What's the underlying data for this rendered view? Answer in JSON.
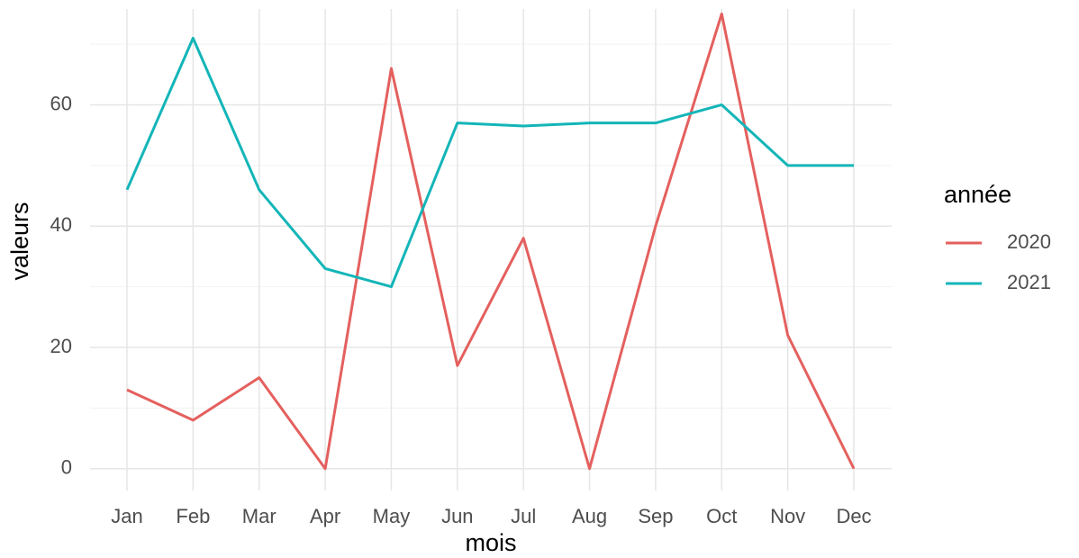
{
  "chart_data": {
    "type": "line",
    "x_label": "mois",
    "y_label": "valeurs",
    "legend_title": "année",
    "legend_position": "right",
    "categories": [
      "Jan",
      "Feb",
      "Mar",
      "Apr",
      "May",
      "Jun",
      "Jul",
      "Aug",
      "Sep",
      "Oct",
      "Nov",
      "Dec"
    ],
    "series": [
      {
        "name": "2020",
        "color": "#e4605e",
        "values": [
          13,
          8,
          15,
          0,
          66,
          17,
          38,
          0,
          40,
          75,
          22,
          0
        ]
      },
      {
        "name": "2021",
        "color": "#13b5b8",
        "values": [
          46,
          71,
          46,
          33,
          30,
          57,
          56.5,
          57,
          57,
          60,
          50,
          50
        ]
      }
    ],
    "ylim": [
      -3.6,
      75.8
    ],
    "yticks": [
      0,
      20,
      40,
      60
    ],
    "yminor": [
      10,
      30,
      50,
      70
    ],
    "grid": true
  }
}
